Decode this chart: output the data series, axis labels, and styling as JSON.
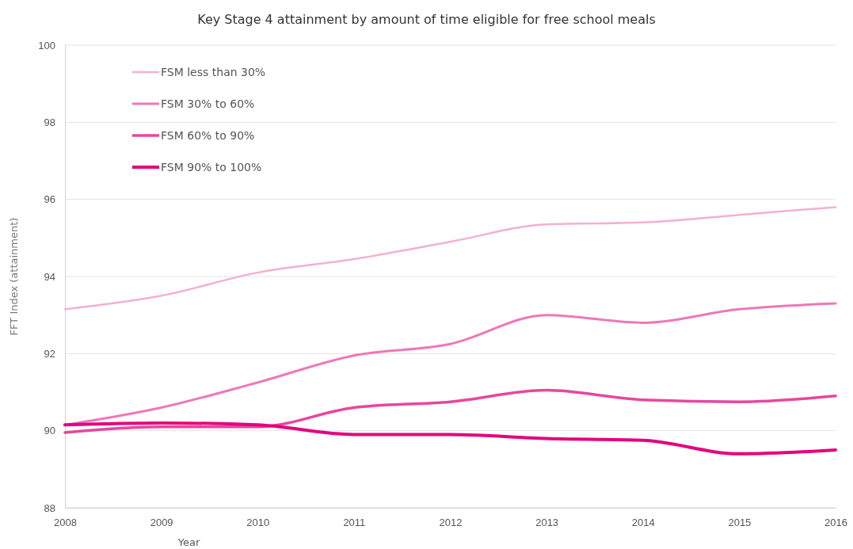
{
  "chart_data": {
    "type": "line",
    "title": "Key Stage 4 attainment by amount of time eligible for free school meals",
    "xlabel": "Year",
    "ylabel": "FFT Index (attainment)",
    "x": [
      2008,
      2009,
      2010,
      2011,
      2012,
      2013,
      2014,
      2015,
      2016
    ],
    "xlim": [
      2008,
      2016
    ],
    "xticks": [
      2008,
      2009,
      2010,
      2011,
      2012,
      2013,
      2014,
      2015,
      2016
    ],
    "ylim": [
      88,
      100
    ],
    "yticks": [
      88,
      90,
      92,
      94,
      96,
      98,
      100
    ],
    "grid": "y",
    "legend": "top left",
    "marker": "none",
    "line_style": "solid",
    "series": [
      {
        "name": "FSM less than 30%",
        "color": "#f2b0d3",
        "values": [
          93.15,
          93.5,
          94.1,
          94.45,
          94.9,
          95.35,
          95.4,
          95.6,
          95.8
        ]
      },
      {
        "name": "FSM 30% to 60%",
        "color": "#ee78b8",
        "values": [
          90.15,
          90.6,
          91.25,
          91.95,
          92.25,
          93.0,
          92.8,
          93.15,
          93.3
        ]
      },
      {
        "name": "FSM 60% to 90%",
        "color": "#e8479c",
        "values": [
          89.95,
          90.1,
          90.1,
          90.6,
          90.75,
          91.05,
          90.8,
          90.75,
          90.9
        ]
      },
      {
        "name": "FSM 90% to 100%",
        "color": "#e5007e",
        "values": [
          90.15,
          90.2,
          90.15,
          89.9,
          89.9,
          89.8,
          89.75,
          89.4,
          89.5
        ]
      }
    ]
  }
}
